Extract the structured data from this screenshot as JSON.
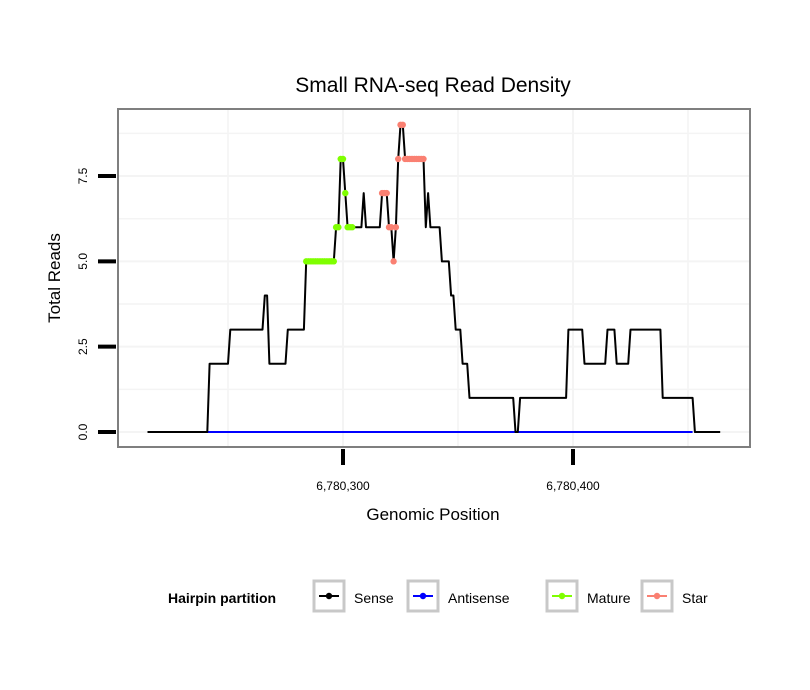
{
  "chart_data": {
    "type": "line",
    "title": "Small RNA-seq Read Density",
    "xlabel": "Genomic Position",
    "ylabel": "Total Reads",
    "xlim": [
      6780200,
      6780475
    ],
    "ylim": [
      -0.5,
      9.5
    ],
    "x_ticks": [
      6780300,
      6780400
    ],
    "x_tick_labels": [
      "6,780,300",
      "6,780,400"
    ],
    "y_ticks": [
      0,
      2.5,
      5,
      7.5
    ],
    "y_tick_labels": [
      "0.0",
      "2.5",
      "5.0",
      "7.5"
    ],
    "grid": true,
    "legend": {
      "title": "Hairpin partition",
      "placement": "bottom",
      "entries": [
        {
          "name": "Sense",
          "color": "#000000"
        },
        {
          "name": "Antisense",
          "color": "#0000ff"
        },
        {
          "name": "Mature",
          "color": "#7fff00"
        },
        {
          "name": "Star",
          "color": "#fa8072"
        }
      ]
    },
    "series": [
      {
        "name": "Sense",
        "color": "#000000",
        "segments": [
          [
            6780215,
            6780241,
            0
          ],
          [
            6780242,
            6780250,
            2
          ],
          [
            6780251,
            6780265,
            3
          ],
          [
            6780266,
            6780267,
            4
          ],
          [
            6780268,
            6780275,
            2
          ],
          [
            6780276,
            6780283,
            3
          ],
          [
            6780284,
            6780296,
            5
          ],
          [
            6780297,
            6780298,
            6
          ],
          [
            6780299,
            6780300,
            8
          ],
          [
            6780301,
            6780301,
            7
          ],
          [
            6780302,
            6780308,
            6
          ],
          [
            6780309,
            6780309,
            7
          ],
          [
            6780310,
            6780316,
            6
          ],
          [
            6780317,
            6780319,
            7
          ],
          [
            6780320,
            6780321,
            6
          ],
          [
            6780322,
            6780322,
            5
          ],
          [
            6780323,
            6780323,
            6
          ],
          [
            6780324,
            6780324,
            8
          ],
          [
            6780325,
            6780326,
            9
          ],
          [
            6780327,
            6780335,
            8
          ],
          [
            6780336,
            6780336,
            6
          ],
          [
            6780337,
            6780337,
            7
          ],
          [
            6780338,
            6780342,
            6
          ],
          [
            6780343,
            6780346,
            5
          ],
          [
            6780347,
            6780348,
            4
          ],
          [
            6780349,
            6780351,
            3
          ],
          [
            6780352,
            6780354,
            2
          ],
          [
            6780355,
            6780374,
            1
          ],
          [
            6780375,
            6780376,
            0
          ],
          [
            6780377,
            6780397,
            1
          ],
          [
            6780398,
            6780404,
            3
          ],
          [
            6780405,
            6780414,
            2
          ],
          [
            6780415,
            6780418,
            3
          ],
          [
            6780419,
            6780424,
            2
          ],
          [
            6780425,
            6780438,
            3
          ],
          [
            6780439,
            6780452,
            1
          ],
          [
            6780453,
            6780464,
            0
          ]
        ]
      },
      {
        "name": "Antisense",
        "color": "#0000ff",
        "segments": [
          [
            6780241,
            6780452,
            0
          ]
        ]
      },
      {
        "name": "Mature",
        "color": "#7fff00",
        "points": [
          [
            6780284,
            5
          ],
          [
            6780285,
            5
          ],
          [
            6780286,
            5
          ],
          [
            6780287,
            5
          ],
          [
            6780288,
            5
          ],
          [
            6780289,
            5
          ],
          [
            6780290,
            5
          ],
          [
            6780291,
            5
          ],
          [
            6780292,
            5
          ],
          [
            6780293,
            5
          ],
          [
            6780294,
            5
          ],
          [
            6780295,
            5
          ],
          [
            6780296,
            5
          ],
          [
            6780297,
            6
          ],
          [
            6780298,
            6
          ],
          [
            6780299,
            8
          ],
          [
            6780300,
            8
          ],
          [
            6780301,
            7
          ],
          [
            6780302,
            6
          ],
          [
            6780303,
            6
          ],
          [
            6780304,
            6
          ]
        ]
      },
      {
        "name": "Star",
        "color": "#fa8072",
        "points": [
          [
            6780317,
            7
          ],
          [
            6780318,
            7
          ],
          [
            6780319,
            7
          ],
          [
            6780320,
            6
          ],
          [
            6780321,
            6
          ],
          [
            6780322,
            5
          ],
          [
            6780323,
            6
          ],
          [
            6780324,
            8
          ],
          [
            6780325,
            9
          ],
          [
            6780326,
            9
          ],
          [
            6780327,
            8
          ],
          [
            6780328,
            8
          ],
          [
            6780329,
            8
          ],
          [
            6780330,
            8
          ],
          [
            6780331,
            8
          ],
          [
            6780332,
            8
          ],
          [
            6780333,
            8
          ],
          [
            6780334,
            8
          ],
          [
            6780335,
            8
          ]
        ]
      }
    ]
  }
}
